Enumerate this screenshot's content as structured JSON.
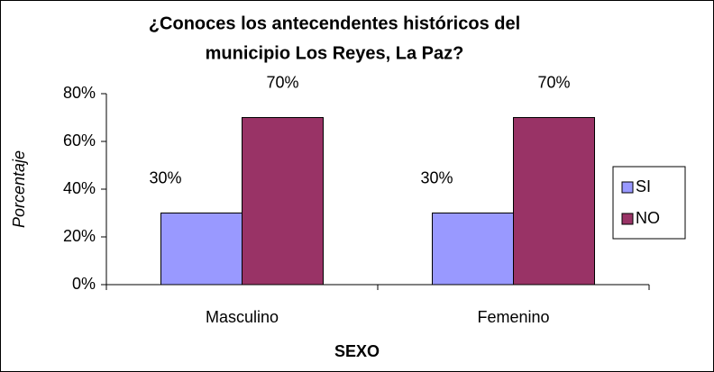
{
  "chart_data": {
    "type": "bar",
    "title": [
      "¿Conoces los antecendentes históricos del",
      "municipio Los Reyes, La Paz?"
    ],
    "xlabel": "SEXO",
    "ylabel": "Porcentaje",
    "categories": [
      "Masculino",
      "Femenino"
    ],
    "series": [
      {
        "name": "SI",
        "color": "#9999ff",
        "values": [
          30,
          30
        ],
        "value_labels": [
          "30%",
          "30%"
        ]
      },
      {
        "name": "NO",
        "color": "#993366",
        "values": [
          70,
          70
        ],
        "value_labels": [
          "70%",
          "70%"
        ]
      }
    ],
    "ylim": [
      0,
      80
    ],
    "yticks": [
      {
        "value": 0,
        "label": "0%"
      },
      {
        "value": 20,
        "label": "20%"
      },
      {
        "value": 40,
        "label": "40%"
      },
      {
        "value": 60,
        "label": "60%"
      },
      {
        "value": 80,
        "label": "80%"
      }
    ],
    "grid": false,
    "legend": "right"
  }
}
